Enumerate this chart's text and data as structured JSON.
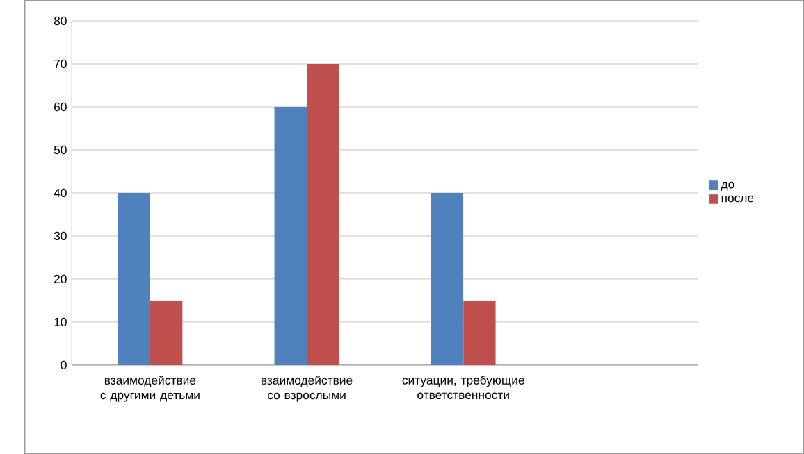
{
  "chart_data": {
    "type": "bar",
    "categories": [
      "взаимодействие с другими детьми",
      "взаимодействие со взрослыми",
      "ситуации, требующие ответственности",
      null
    ],
    "series": [
      {
        "name": "до",
        "color": "#4f81bd",
        "values": [
          40,
          60,
          40,
          null
        ]
      },
      {
        "name": "после",
        "color": "#c0504d",
        "values": [
          15,
          70,
          15,
          null
        ]
      }
    ],
    "ylim": [
      0,
      80
    ],
    "yticks": [
      0,
      10,
      20,
      30,
      40,
      50,
      60,
      70,
      80
    ],
    "grid": "y",
    "legend": "right"
  }
}
